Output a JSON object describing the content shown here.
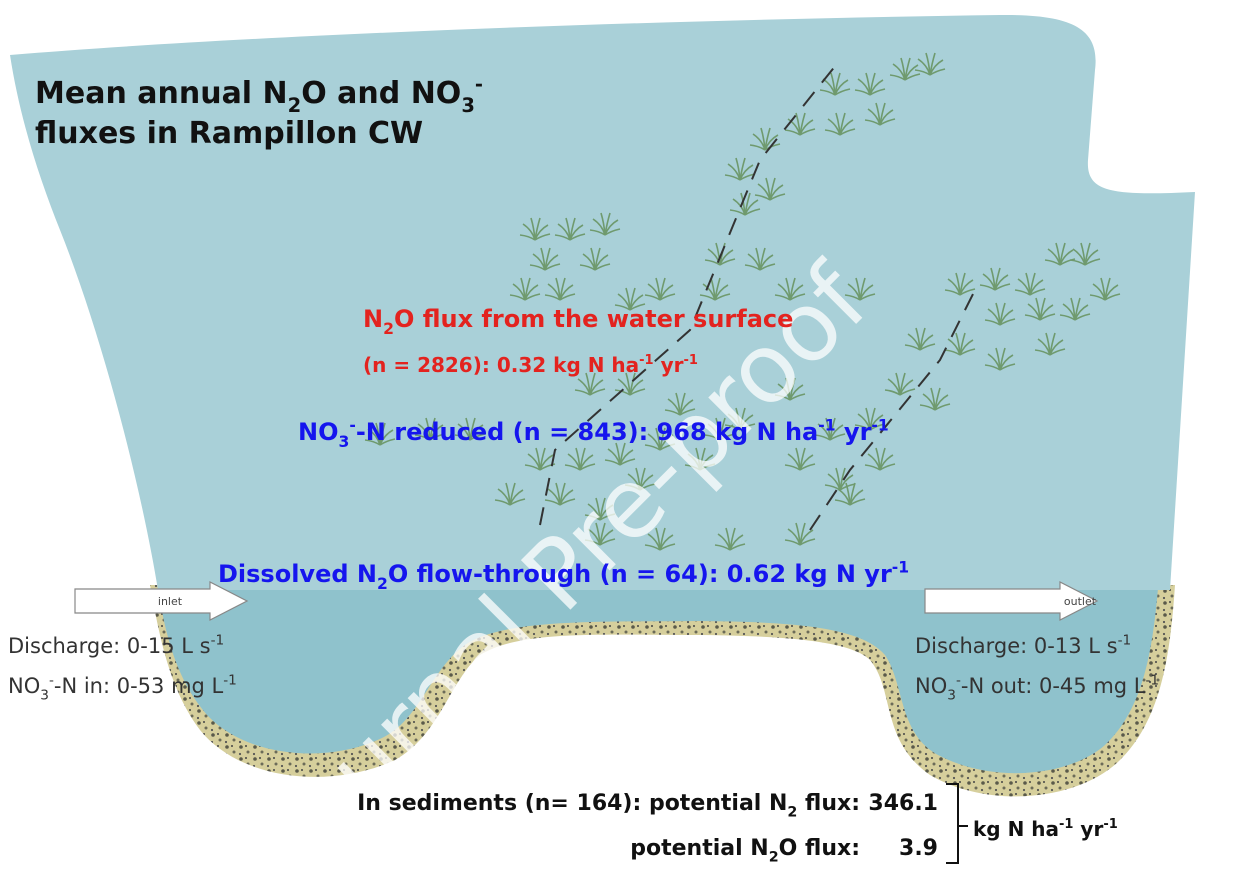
{
  "title": [
    [
      "Mean annual N",
      {
        "sub": "2"
      },
      "O and NO",
      {
        "sub": "3"
      },
      {
        "sup": "-"
      }
    ],
    [
      "fluxes in Rampillon CW"
    ]
  ],
  "surface_flux": [
    [
      "N",
      {
        "sub": "2"
      },
      "O flux from the water surface"
    ],
    [
      "(n = 2826):  0.32 kg N ha",
      {
        "sup": "-1"
      },
      " yr",
      {
        "sup": "-1"
      }
    ]
  ],
  "nitrate_reduced": [
    "NO",
    {
      "sub": "3"
    },
    {
      "sup": "-"
    },
    "-N reduced (n = 843): 968 kg N ha",
    {
      "sup": "-1"
    },
    " yr",
    {
      "sup": "-1"
    }
  ],
  "dissolved_flow": [
    "Dissolved N",
    {
      "sub": "2"
    },
    "O flow-through (n = 64): 0.62 kg N yr",
    {
      "sup": "-1"
    }
  ],
  "inlet": {
    "arrow": "inlet",
    "lines": [
      [
        "Discharge: 0-15 L s",
        {
          "sup": "-1"
        }
      ],
      [
        "NO",
        {
          "sub": "3"
        },
        {
          "sup": "-"
        },
        "-N in: 0-53 mg L",
        {
          "sup": "-1"
        }
      ]
    ]
  },
  "outlet": {
    "arrow": "outlet",
    "lines": [
      [
        "Discharge: 0-13 L s",
        {
          "sup": "-1"
        }
      ],
      [
        "NO",
        {
          "sub": "3"
        },
        {
          "sup": "-"
        },
        "-N out: 0-45 mg L",
        {
          "sup": "-1"
        }
      ]
    ]
  },
  "sediments": {
    "rows": [
      {
        "label": [
          "In sediments (n= 164): potential N",
          {
            "sub": "2"
          },
          " flux:"
        ],
        "value": "346.1"
      },
      {
        "label": [
          "potential N",
          {
            "sub": "2"
          },
          "O flux:"
        ],
        "value": "3.9"
      }
    ],
    "unit": [
      "kg N ha",
      {
        "sup": "-1"
      },
      " yr",
      {
        "sup": "-1"
      }
    ]
  },
  "watermark": "Journal Pre-proof"
}
